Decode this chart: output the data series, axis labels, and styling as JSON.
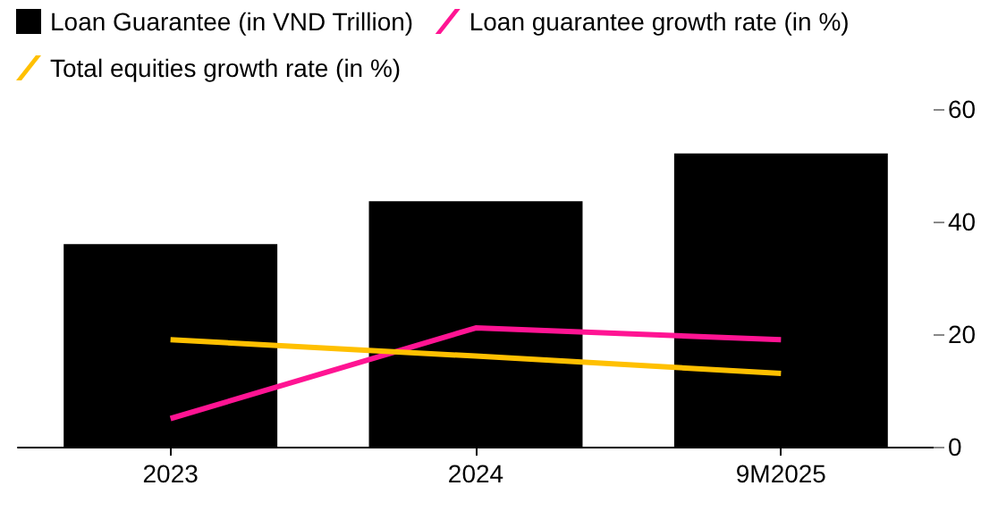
{
  "chart_data": {
    "type": "bar",
    "categories": [
      "2023",
      "2024",
      "9M2025"
    ],
    "series": [
      {
        "name": "Loan Guarantee (in VND Trillion)",
        "color": "#000000",
        "values": [
          36,
          43.6,
          52.1
        ]
      },
      {
        "name": "Loan guarantee growth rate (in %)",
        "type": "line",
        "color": "#ff1493",
        "values": [
          5,
          21.1,
          19
        ]
      },
      {
        "name": "Total equities growth rate (in %)",
        "type": "line",
        "color": "#ffc000",
        "values": [
          19,
          16.1,
          13
        ]
      }
    ],
    "ylim": [
      0,
      60
    ],
    "yticks": [
      0,
      20,
      40,
      60
    ],
    "grid": false,
    "legend": "top left",
    "marker": "none"
  }
}
